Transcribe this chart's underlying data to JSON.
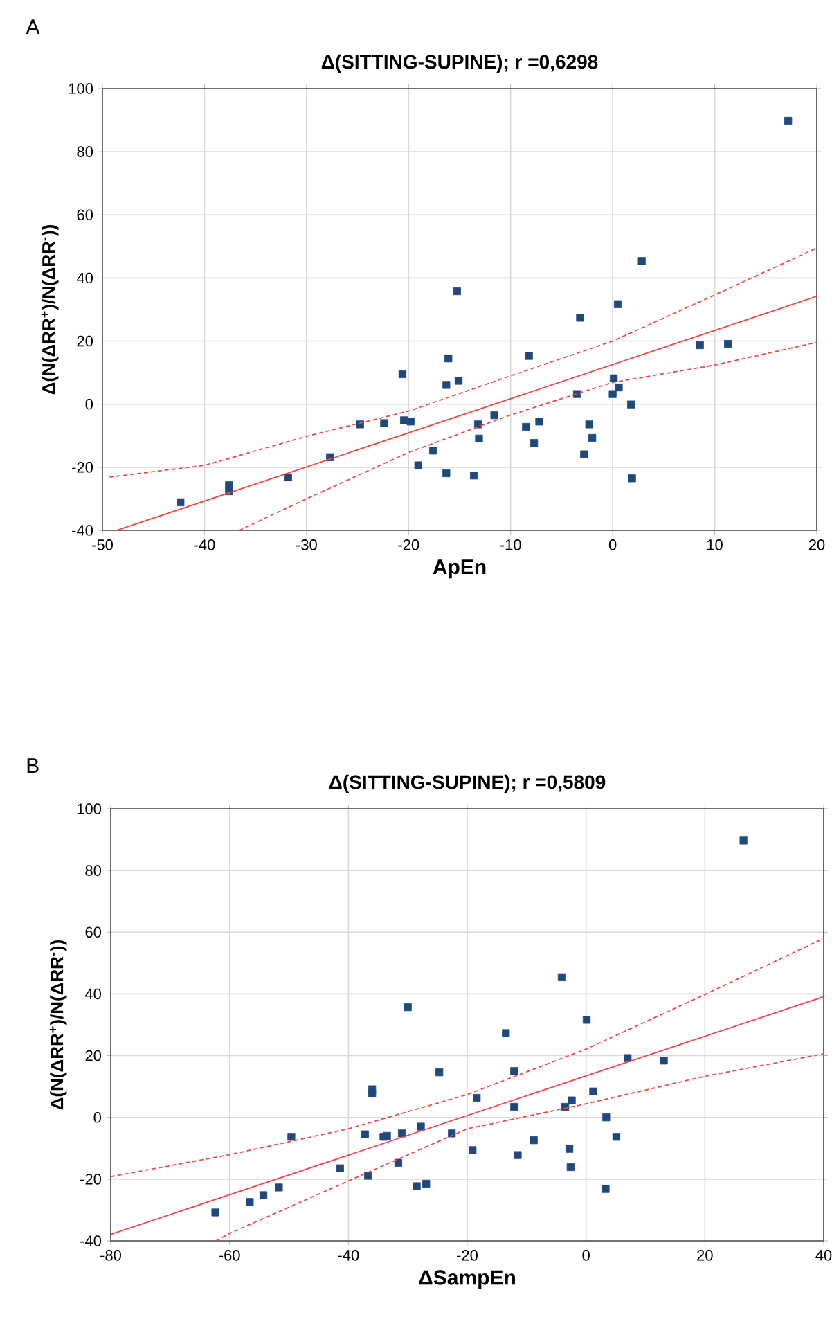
{
  "chart_data": [
    {
      "type": "scatter",
      "title": "Δ(SITTING-SUPINE); r =0,6298",
      "xlabel": "ApEn",
      "ylabel": "Δ(N(ΔRR$^{+}$)/N(ΔRR$^{-}$))",
      "annotations": [
        "A"
      ],
      "xlim": [
        -50,
        20
      ],
      "ylim": [
        -40,
        100
      ],
      "xticks": [
        -50,
        -40,
        -30,
        -20,
        -10,
        0,
        10,
        20
      ],
      "yticks": [
        -40,
        -20,
        0,
        20,
        40,
        60,
        80,
        100
      ],
      "grid": true,
      "marker": "square",
      "series": [
        {
          "color": "#1f497d",
          "x": [
            17.2,
            2.85,
            -15.25,
            0.5,
            -3.2,
            -8.2,
            -16.1,
            8.55,
            11.3,
            -20.6,
            -16.3,
            -15.1,
            0.1,
            -3.5,
            0.0,
            0.6,
            1.8,
            -24.75,
            -22.4,
            -20.45,
            -19.8,
            -11.6,
            -13.2,
            -13.1,
            -8.5,
            -7.2,
            -7.7,
            -2.3,
            -2.0,
            -2.8,
            -17.6,
            -19.05,
            -27.7,
            -16.3,
            -13.6,
            1.9,
            -31.8,
            -37.6,
            -37.6,
            -42.35
          ],
          "values": [
            89.8,
            45.4,
            35.8,
            31.7,
            27.4,
            15.3,
            14.5,
            18.7,
            19.1,
            9.5,
            6.1,
            7.4,
            8.2,
            3.2,
            3.2,
            5.3,
            -0.1,
            -6.4,
            -6.0,
            -5.1,
            -5.5,
            -3.5,
            -6.4,
            -10.9,
            -7.2,
            -5.5,
            -12.3,
            -6.4,
            -10.7,
            -15.9,
            -14.7,
            -19.4,
            -16.8,
            -21.9,
            -22.6,
            -23.5,
            -23.2,
            -25.7,
            -27.6,
            -31.1
          ]
        },
        {
          "type": "line",
          "marker": "none",
          "color": "#ff4040",
          "line_style": "solid",
          "x": [
            -48.6,
            20
          ],
          "values": [
            -40,
            34.2
          ]
        },
        {
          "type": "line",
          "marker": "none",
          "color": "#ff4040",
          "line_style": "dashed",
          "x": [
            -49.3,
            -40,
            -30,
            -20,
            -10,
            0,
            10,
            20
          ],
          "values": [
            -23.1,
            -19.4,
            -10.2,
            -2.2,
            9,
            20,
            34.6,
            49.5
          ]
        },
        {
          "type": "line",
          "marker": "none",
          "color": "#ff4040",
          "line_style": "dashed",
          "x": [
            -36.6,
            -30,
            -20,
            -10,
            0,
            10,
            20
          ],
          "values": [
            -40,
            -30,
            -15.3,
            -3.4,
            6.9,
            12.4,
            19.6
          ]
        }
      ]
    },
    {
      "type": "scatter",
      "title": "Δ(SITTING-SUPINE); r =0,5809",
      "xlabel": "ΔSampEn",
      "ylabel": "Δ(N(ΔRR$^{+}$)/N(ΔRR$^{-}$))",
      "annotations": [
        "B"
      ],
      "xlim": [
        -80,
        40
      ],
      "ylim": [
        -40,
        100
      ],
      "xticks": [
        -80,
        -60,
        -40,
        -20,
        0,
        20,
        40
      ],
      "yticks": [
        -40,
        -20,
        0,
        20,
        40,
        60,
        80,
        100
      ],
      "grid": true,
      "marker": "square",
      "series": [
        {
          "color": "#1f497d",
          "x": [
            26.5,
            -4.1,
            -30.0,
            0.1,
            -13.5,
            7.0,
            13.1,
            -12.1,
            -24.7,
            -36.0,
            -36.0,
            -18.4,
            1.2,
            -2.4,
            -3.5,
            -12.1,
            3.4,
            5.1,
            -49.6,
            -37.2,
            -34.1,
            -33.5,
            -31.0,
            -27.8,
            -22.6,
            -19.1,
            -8.8,
            -11.5,
            -2.8,
            -2.6,
            -31.6,
            -41.4,
            -36.7,
            -28.5,
            -26.9,
            3.3,
            -51.7,
            -54.3,
            -56.6,
            -62.4
          ],
          "values": [
            89.7,
            45.4,
            35.7,
            31.6,
            27.3,
            19.2,
            18.4,
            15.0,
            14.6,
            9.1,
            7.7,
            6.3,
            8.4,
            5.5,
            3.4,
            3.4,
            0,
            -6.3,
            -6.3,
            -5.5,
            -6.3,
            -6.0,
            -5.2,
            -3.0,
            -5.2,
            -10.6,
            -7.4,
            -12.2,
            -10.2,
            -16.1,
            -14.7,
            -16.5,
            -18.9,
            -22.3,
            -21.5,
            -23.2,
            -22.7,
            -25.2,
            -27.4,
            -30.8
          ]
        },
        {
          "type": "line",
          "marker": "none",
          "color": "#ff4040",
          "line_style": "solid",
          "x": [
            -80,
            40
          ],
          "values": [
            -37.9,
            39.1
          ]
        },
        {
          "type": "line",
          "marker": "none",
          "color": "#ff4040",
          "line_style": "dashed",
          "x": [
            -80,
            -60,
            -40,
            -20,
            0,
            20,
            40
          ],
          "values": [
            -19.2,
            -12.1,
            -3.7,
            7.4,
            22.1,
            39.8,
            58.0
          ]
        },
        {
          "type": "line",
          "marker": "none",
          "color": "#ff4040",
          "line_style": "dashed",
          "x": [
            -62.3,
            -60,
            -40,
            -20,
            0,
            20,
            40
          ],
          "values": [
            -40,
            -37.6,
            -20.6,
            -3.7,
            4.4,
            13.3,
            20.6
          ]
        }
      ]
    }
  ]
}
